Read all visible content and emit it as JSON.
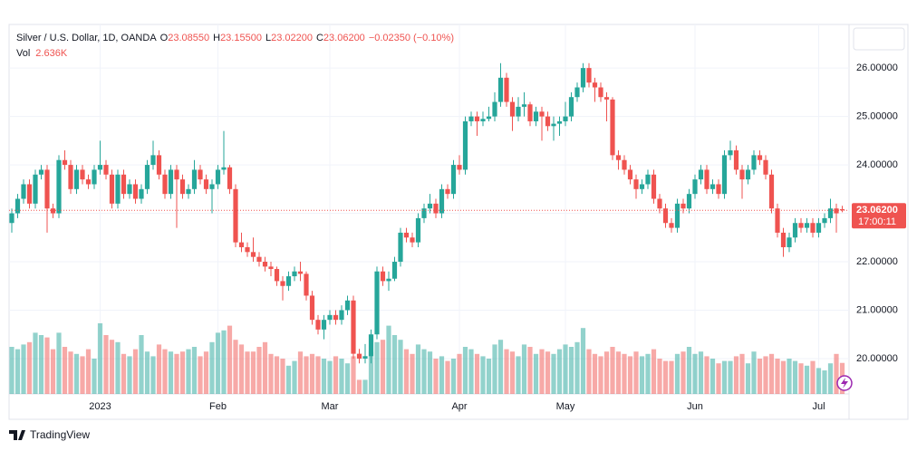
{
  "chart_data": {
    "type": "candlestick",
    "title": "Silver / U.S. Dollar, 1D, OANDA",
    "ohlc_legend": [
      {
        "label": "O",
        "value": "23.08550"
      },
      {
        "label": "H",
        "value": "23.15500"
      },
      {
        "label": "L",
        "value": "23.02200"
      },
      {
        "label": "C",
        "value": "23.06200"
      }
    ],
    "change": "−0.02350 (−0.10%)",
    "volume_label": "Vol",
    "volume_value": "2.636K",
    "last_price_label": "23.06200",
    "countdown": "17:00:11",
    "branding": "TradingView",
    "up_color": "#26a69a",
    "down_color": "#ef5350",
    "grid": true,
    "ylim": [
      19.27,
      26.9
    ],
    "yticks": [
      {
        "value": 20,
        "label": "20.00000"
      },
      {
        "value": 21,
        "label": "21.00000"
      },
      {
        "value": 22,
        "label": "22.00000"
      },
      {
        "value": 23,
        "label": "23.00000"
      },
      {
        "value": 24,
        "label": "24.00000"
      },
      {
        "value": 25,
        "label": "25.00000"
      },
      {
        "value": 26,
        "label": "26.00000"
      }
    ],
    "categories": [
      null,
      null,
      null,
      null,
      null,
      null,
      null,
      null,
      null,
      null,
      null,
      null,
      null,
      null,
      null,
      "2023",
      null,
      null,
      null,
      null,
      null,
      null,
      null,
      null,
      null,
      null,
      null,
      null,
      null,
      null,
      null,
      null,
      null,
      null,
      null,
      "Feb",
      null,
      null,
      null,
      null,
      null,
      null,
      null,
      null,
      null,
      null,
      null,
      null,
      null,
      null,
      null,
      null,
      null,
      null,
      "Mar",
      null,
      null,
      null,
      null,
      null,
      null,
      null,
      null,
      null,
      null,
      null,
      null,
      null,
      null,
      null,
      null,
      null,
      null,
      null,
      null,
      null,
      "Apr",
      null,
      null,
      null,
      null,
      null,
      null,
      null,
      null,
      null,
      null,
      null,
      null,
      null,
      null,
      null,
      null,
      null,
      "May",
      null,
      null,
      null,
      null,
      null,
      null,
      null,
      null,
      null,
      null,
      null,
      null,
      null,
      null,
      null,
      null,
      null,
      null,
      null,
      null,
      null,
      "Jun",
      null,
      null,
      null,
      null,
      null,
      null,
      null,
      null,
      null,
      null,
      null,
      null,
      null,
      null,
      null,
      null,
      null,
      null,
      null,
      null,
      "Jul",
      null,
      null,
      null,
      null
    ],
    "open": [
      22.8,
      23.0,
      23.3,
      23.6,
      23.2,
      23.8,
      23.9,
      23.1,
      23.0,
      24.1,
      24.0,
      23.5,
      23.9,
      23.7,
      23.6,
      23.9,
      24.0,
      23.8,
      23.2,
      23.8,
      23.4,
      23.6,
      23.3,
      23.5,
      24.0,
      24.2,
      23.8,
      23.4,
      23.9,
      23.7,
      23.4,
      23.5,
      23.9,
      23.7,
      23.5,
      23.6,
      23.9,
      23.95,
      23.5,
      22.4,
      22.3,
      22.2,
      22.1,
      22.0,
      21.9,
      21.85,
      21.6,
      21.5,
      21.7,
      21.8,
      21.75,
      21.3,
      20.8,
      20.6,
      20.8,
      20.9,
      20.8,
      21.0,
      21.2,
      20.1,
      20.0,
      20.05,
      20.5,
      21.8,
      21.6,
      21.65,
      22.0,
      22.6,
      22.5,
      22.4,
      22.9,
      23.1,
      23.2,
      23.0,
      23.5,
      23.4,
      24.0,
      23.9,
      24.9,
      25.0,
      24.9,
      24.95,
      25.0,
      25.3,
      25.8,
      25.3,
      25.0,
      25.2,
      25.25,
      24.9,
      25.1,
      25.0,
      24.8,
      24.85,
      24.9,
      25.0,
      25.4,
      25.6,
      26.0,
      25.7,
      25.6,
      25.4,
      25.35,
      24.2,
      24.1,
      23.9,
      23.7,
      23.5,
      23.6,
      23.8,
      23.3,
      23.1,
      22.8,
      22.7,
      23.2,
      23.1,
      23.4,
      23.7,
      23.9,
      23.5,
      23.6,
      23.4,
      24.2,
      24.3,
      23.9,
      23.7,
      23.9,
      24.2,
      24.1,
      23.8,
      23.1,
      22.6,
      22.3,
      22.5,
      22.8,
      22.7,
      22.8,
      22.6,
      22.8,
      22.9,
      23.1,
      23.0855
    ],
    "high": [
      23.1,
      23.4,
      23.7,
      23.7,
      23.9,
      24.0,
      24.0,
      23.2,
      24.2,
      24.3,
      24.1,
      24.0,
      24.0,
      23.8,
      24.0,
      24.5,
      24.1,
      23.9,
      23.9,
      23.9,
      23.7,
      23.7,
      23.6,
      24.1,
      24.5,
      24.3,
      23.9,
      24.0,
      24.0,
      23.8,
      23.6,
      24.1,
      24.0,
      23.8,
      23.7,
      24.0,
      24.7,
      24.0,
      23.6,
      22.6,
      22.4,
      22.5,
      22.2,
      22.1,
      22.0,
      21.9,
      21.7,
      21.8,
      21.9,
      22.0,
      21.8,
      21.4,
      20.9,
      20.9,
      21.0,
      21.0,
      21.1,
      21.3,
      21.3,
      20.2,
      20.3,
      20.6,
      21.9,
      21.9,
      21.8,
      22.1,
      22.7,
      22.7,
      22.6,
      23.0,
      23.2,
      23.4,
      23.3,
      23.6,
      23.6,
      24.1,
      24.2,
      25.0,
      25.1,
      25.1,
      25.1,
      25.2,
      25.5,
      26.1,
      25.9,
      25.4,
      25.4,
      25.5,
      25.3,
      25.2,
      25.2,
      25.1,
      25.0,
      25.0,
      25.3,
      25.5,
      25.7,
      26.1,
      26.1,
      25.8,
      25.7,
      25.5,
      25.4,
      24.3,
      24.2,
      24.0,
      23.8,
      23.7,
      23.9,
      23.9,
      23.4,
      23.2,
      22.9,
      23.3,
      23.3,
      23.5,
      23.8,
      24.0,
      24.0,
      23.7,
      23.7,
      24.3,
      24.5,
      24.4,
      24.0,
      24.0,
      24.3,
      24.3,
      24.2,
      23.9,
      23.2,
      22.7,
      22.6,
      22.9,
      22.9,
      22.9,
      22.9,
      22.9,
      23.0,
      23.3,
      23.2,
      23.155
    ],
    "low": [
      22.6,
      22.9,
      23.2,
      23.1,
      23.1,
      23.7,
      22.6,
      22.9,
      22.9,
      23.9,
      23.4,
      23.4,
      23.6,
      23.5,
      23.5,
      23.8,
      23.7,
      23.1,
      23.1,
      23.3,
      23.3,
      23.2,
      23.2,
      23.4,
      23.9,
      23.7,
      23.3,
      23.3,
      22.7,
      23.3,
      23.3,
      23.4,
      23.6,
      23.4,
      23.0,
      23.5,
      23.8,
      23.4,
      22.3,
      22.2,
      22.1,
      22.0,
      21.9,
      21.8,
      21.7,
      21.5,
      21.2,
      21.4,
      21.6,
      21.6,
      21.2,
      20.7,
      20.5,
      20.4,
      20.7,
      20.7,
      20.7,
      20.9,
      20.0,
      19.9,
      19.9,
      19.9,
      20.4,
      21.5,
      21.4,
      21.6,
      21.9,
      22.4,
      22.3,
      22.3,
      22.8,
      23.0,
      22.9,
      22.9,
      23.3,
      23.3,
      23.8,
      23.8,
      24.8,
      24.6,
      24.8,
      24.9,
      24.9,
      25.2,
      25.2,
      24.7,
      24.9,
      25.0,
      24.8,
      24.8,
      24.5,
      24.7,
      24.5,
      24.6,
      24.8,
      24.9,
      25.3,
      25.5,
      25.6,
      25.3,
      25.3,
      24.9,
      24.1,
      23.9,
      23.8,
      23.6,
      23.3,
      23.4,
      23.5,
      23.2,
      23.0,
      22.7,
      22.6,
      22.6,
      23.0,
      23.0,
      23.3,
      23.6,
      23.4,
      23.4,
      23.3,
      23.3,
      24.1,
      23.8,
      23.3,
      23.6,
      23.8,
      24.0,
      23.7,
      23.0,
      22.5,
      22.1,
      22.2,
      22.4,
      22.6,
      22.6,
      22.5,
      22.5,
      22.7,
      22.8,
      22.6,
      23.022
    ],
    "close": [
      23.0,
      23.3,
      23.6,
      23.2,
      23.8,
      23.9,
      23.1,
      23.0,
      24.1,
      24.0,
      23.5,
      23.9,
      23.7,
      23.6,
      23.9,
      24.0,
      23.8,
      23.2,
      23.8,
      23.4,
      23.6,
      23.3,
      23.5,
      24.0,
      24.2,
      23.8,
      23.4,
      23.9,
      23.7,
      23.4,
      23.5,
      23.9,
      23.7,
      23.5,
      23.6,
      23.9,
      23.95,
      23.5,
      22.4,
      22.3,
      22.2,
      22.1,
      22.0,
      21.9,
      21.85,
      21.6,
      21.5,
      21.7,
      21.8,
      21.75,
      21.3,
      20.8,
      20.6,
      20.8,
      20.9,
      20.8,
      21.0,
      21.2,
      20.1,
      20.0,
      20.05,
      20.5,
      21.8,
      21.6,
      21.65,
      22.0,
      22.6,
      22.5,
      22.4,
      22.9,
      23.1,
      23.2,
      23.0,
      23.5,
      23.4,
      24.0,
      23.9,
      24.9,
      25.0,
      24.9,
      24.95,
      25.0,
      25.3,
      25.8,
      25.3,
      25.0,
      25.2,
      25.25,
      24.9,
      25.1,
      25.0,
      24.8,
      24.85,
      24.9,
      25.0,
      25.4,
      25.6,
      26.0,
      25.7,
      25.6,
      25.4,
      25.35,
      24.2,
      24.1,
      23.9,
      23.7,
      23.5,
      23.6,
      23.8,
      23.3,
      23.1,
      22.8,
      22.7,
      23.2,
      23.1,
      23.4,
      23.7,
      23.9,
      23.5,
      23.6,
      23.4,
      24.2,
      24.3,
      23.9,
      23.7,
      23.9,
      24.2,
      24.1,
      23.8,
      23.1,
      22.6,
      22.3,
      22.5,
      22.8,
      22.7,
      22.8,
      22.6,
      22.8,
      22.9,
      23.1,
      23.0,
      23.062
    ],
    "volume": [
      4.0,
      3.8,
      4.2,
      4.4,
      5.2,
      5.0,
      4.8,
      3.8,
      5.2,
      4.0,
      3.6,
      3.4,
      3.2,
      3.8,
      3.0,
      6.0,
      5.0,
      4.6,
      4.4,
      3.4,
      3.2,
      3.8,
      5.0,
      3.6,
      3.2,
      4.2,
      3.8,
      3.6,
      3.4,
      3.6,
      3.8,
      4.0,
      3.2,
      3.6,
      4.4,
      5.2,
      5.4,
      5.8,
      4.6,
      4.2,
      3.6,
      3.6,
      4.0,
      4.4,
      3.4,
      3.2,
      3.0,
      2.4,
      2.8,
      3.6,
      3.2,
      3.4,
      3.2,
      3.0,
      2.8,
      3.2,
      3.0,
      2.6,
      3.2,
      1.2,
      1.2,
      3.6,
      4.4,
      4.6,
      5.8,
      5.0,
      4.6,
      3.8,
      3.4,
      4.2,
      3.8,
      3.6,
      3.0,
      3.2,
      2.8,
      3.0,
      3.4,
      4.0,
      3.8,
      3.4,
      3.2,
      3.0,
      4.2,
      4.6,
      3.8,
      3.6,
      3.2,
      4.2,
      4.0,
      3.4,
      3.8,
      3.6,
      3.4,
      3.8,
      4.2,
      4.0,
      4.4,
      5.6,
      3.8,
      3.4,
      3.2,
      3.6,
      4.0,
      3.6,
      3.4,
      3.2,
      3.6,
      3.2,
      3.4,
      3.8,
      3.0,
      2.8,
      2.8,
      3.4,
      3.6,
      4.0,
      3.4,
      3.6,
      3.2,
      3.0,
      2.6,
      2.8,
      2.8,
      3.2,
      3.4,
      2.6,
      3.6,
      3.0,
      3.2,
      3.4,
      3.0,
      2.8,
      3.0,
      2.8,
      2.6,
      2.4,
      2.8,
      2.2,
      2.0,
      2.6,
      3.4,
      2.636
    ]
  }
}
